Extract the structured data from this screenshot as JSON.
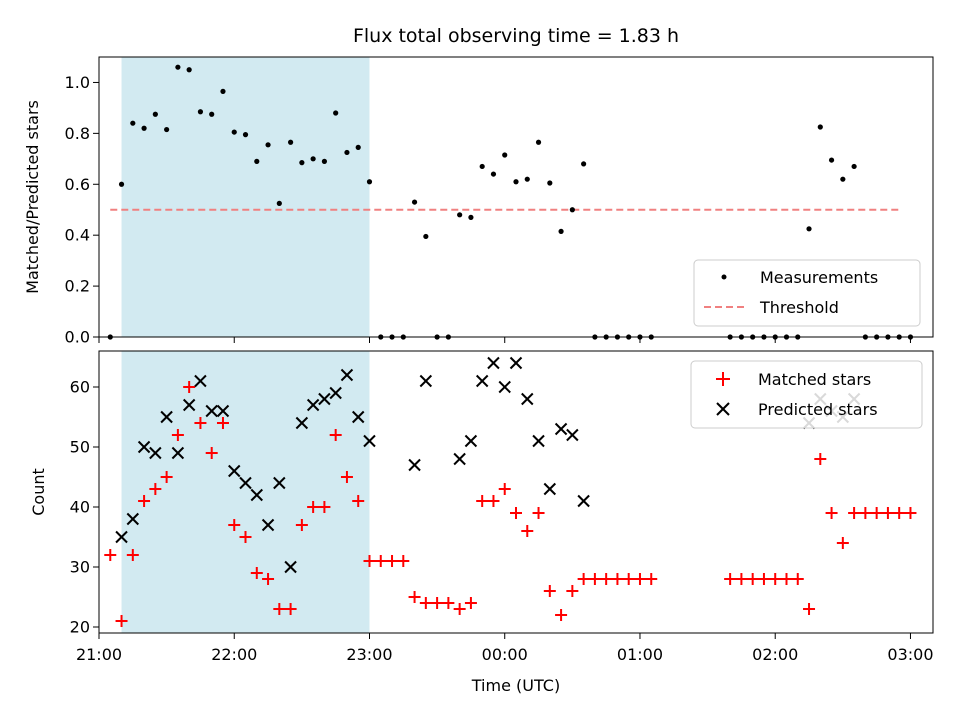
{
  "title": "Flux total observing time = 1.83 h",
  "chart_data": [
    {
      "type": "scatter",
      "ylabel": "Matched/Predicted stars",
      "xlabel": "",
      "xlim": [
        "21:00",
        "03:10"
      ],
      "ylim": [
        0,
        1.1
      ],
      "yticks": [
        "0.0",
        "0.2",
        "0.4",
        "0.6",
        "0.8",
        "1.0"
      ],
      "yticks_values": [
        0,
        0.2,
        0.4,
        0.6,
        0.8,
        1.0
      ],
      "highlight_span": {
        "start": "21:10",
        "end": "23:00",
        "color": "#add8e6"
      },
      "threshold": {
        "name": "Threshold",
        "value": 0.5,
        "start": "21:05",
        "end": "02:55",
        "color": "#f08080"
      },
      "legend": {
        "position": "lower-right",
        "entries": [
          "Measurements",
          "Threshold"
        ]
      },
      "series": [
        {
          "name": "Measurements",
          "color": "#000000",
          "points": [
            [
              "21:05",
              0.0
            ],
            [
              "21:10",
              0.6
            ],
            [
              "21:15",
              0.84
            ],
            [
              "21:20",
              0.82
            ],
            [
              "21:25",
              0.875
            ],
            [
              "21:30",
              0.815
            ],
            [
              "21:35",
              1.06
            ],
            [
              "21:40",
              1.05
            ],
            [
              "21:45",
              0.885
            ],
            [
              "21:50",
              0.875
            ],
            [
              "21:55",
              0.965
            ],
            [
              "22:00",
              0.805
            ],
            [
              "22:05",
              0.795
            ],
            [
              "22:10",
              0.69
            ],
            [
              "22:15",
              0.755
            ],
            [
              "22:20",
              0.525
            ],
            [
              "22:25",
              0.765
            ],
            [
              "22:30",
              0.685
            ],
            [
              "22:35",
              0.7
            ],
            [
              "22:40",
              0.69
            ],
            [
              "22:45",
              0.88
            ],
            [
              "22:50",
              0.725
            ],
            [
              "22:55",
              0.745
            ],
            [
              "23:00",
              0.61
            ],
            [
              "23:05",
              0.0
            ],
            [
              "23:10",
              0.0
            ],
            [
              "23:15",
              0.0
            ],
            [
              "23:20",
              0.53
            ],
            [
              "23:25",
              0.395
            ],
            [
              "23:30",
              0.0
            ],
            [
              "23:35",
              0.0
            ],
            [
              "23:40",
              0.48
            ],
            [
              "23:45",
              0.47
            ],
            [
              "23:50",
              0.67
            ],
            [
              "23:55",
              0.64
            ],
            [
              "00:00",
              0.715
            ],
            [
              "00:05",
              0.61
            ],
            [
              "00:10",
              0.62
            ],
            [
              "00:15",
              0.765
            ],
            [
              "00:20",
              0.605
            ],
            [
              "00:25",
              0.415
            ],
            [
              "00:30",
              0.5
            ],
            [
              "00:35",
              0.68
            ],
            [
              "00:40",
              0.0
            ],
            [
              "00:45",
              0.0
            ],
            [
              "00:50",
              0.0
            ],
            [
              "00:55",
              0.0
            ],
            [
              "01:00",
              0.0
            ],
            [
              "01:05",
              0.0
            ],
            [
              "01:40",
              0.0
            ],
            [
              "01:45",
              0.0
            ],
            [
              "01:50",
              0.0
            ],
            [
              "01:55",
              0.0
            ],
            [
              "02:00",
              0.0
            ],
            [
              "02:05",
              0.0
            ],
            [
              "02:10",
              0.0
            ],
            [
              "02:15",
              0.425
            ],
            [
              "02:20",
              0.825
            ],
            [
              "02:25",
              0.695
            ],
            [
              "02:30",
              0.62
            ],
            [
              "02:35",
              0.67
            ],
            [
              "02:40",
              0.0
            ],
            [
              "02:45",
              0.0
            ],
            [
              "02:50",
              0.0
            ],
            [
              "02:55",
              0.0
            ],
            [
              "03:00",
              0.0
            ]
          ]
        }
      ]
    },
    {
      "type": "scatter",
      "ylabel": "Count",
      "xlabel": "Time (UTC)",
      "xlim": [
        "21:00",
        "03:10"
      ],
      "ylim": [
        19,
        66
      ],
      "yticks": [
        "20",
        "30",
        "40",
        "50",
        "60"
      ],
      "yticks_values": [
        20,
        30,
        40,
        50,
        60
      ],
      "xticks": [
        "21:00",
        "22:00",
        "23:00",
        "00:00",
        "01:00",
        "02:00",
        "03:00"
      ],
      "highlight_span": {
        "start": "21:10",
        "end": "23:00",
        "color": "#add8e6"
      },
      "legend": {
        "position": "upper-right",
        "entries": [
          "Matched stars",
          "Predicted stars"
        ]
      },
      "series": [
        {
          "name": "Matched stars",
          "color": "#ff0000",
          "marker": "plus",
          "points": [
            [
              "21:05",
              32
            ],
            [
              "21:10",
              21
            ],
            [
              "21:15",
              32
            ],
            [
              "21:20",
              41
            ],
            [
              "21:25",
              43
            ],
            [
              "21:30",
              45
            ],
            [
              "21:35",
              52
            ],
            [
              "21:40",
              60
            ],
            [
              "21:45",
              54
            ],
            [
              "21:50",
              49
            ],
            [
              "21:55",
              54
            ],
            [
              "22:00",
              37
            ],
            [
              "22:05",
              35
            ],
            [
              "22:10",
              29
            ],
            [
              "22:15",
              28
            ],
            [
              "22:20",
              23
            ],
            [
              "22:25",
              23
            ],
            [
              "22:30",
              37
            ],
            [
              "22:35",
              40
            ],
            [
              "22:40",
              40
            ],
            [
              "22:45",
              52
            ],
            [
              "22:50",
              45
            ],
            [
              "22:55",
              41
            ],
            [
              "23:00",
              31
            ],
            [
              "23:05",
              31
            ],
            [
              "23:10",
              31
            ],
            [
              "23:15",
              31
            ],
            [
              "23:20",
              25
            ],
            [
              "23:25",
              24
            ],
            [
              "23:30",
              24
            ],
            [
              "23:35",
              24
            ],
            [
              "23:40",
              23
            ],
            [
              "23:45",
              24
            ],
            [
              "23:50",
              41
            ],
            [
              "23:55",
              41
            ],
            [
              "00:00",
              43
            ],
            [
              "00:05",
              39
            ],
            [
              "00:10",
              36
            ],
            [
              "00:15",
              39
            ],
            [
              "00:20",
              26
            ],
            [
              "00:25",
              22
            ],
            [
              "00:30",
              26
            ],
            [
              "00:35",
              28
            ],
            [
              "00:40",
              28
            ],
            [
              "00:45",
              28
            ],
            [
              "00:50",
              28
            ],
            [
              "00:55",
              28
            ],
            [
              "01:00",
              28
            ],
            [
              "01:05",
              28
            ],
            [
              "01:40",
              28
            ],
            [
              "01:45",
              28
            ],
            [
              "01:50",
              28
            ],
            [
              "01:55",
              28
            ],
            [
              "02:00",
              28
            ],
            [
              "02:05",
              28
            ],
            [
              "02:10",
              28
            ],
            [
              "02:15",
              23
            ],
            [
              "02:20",
              48
            ],
            [
              "02:25",
              39
            ],
            [
              "02:30",
              34
            ],
            [
              "02:35",
              39
            ],
            [
              "02:40",
              39
            ],
            [
              "02:45",
              39
            ],
            [
              "02:50",
              39
            ],
            [
              "02:55",
              39
            ],
            [
              "03:00",
              39
            ]
          ]
        },
        {
          "name": "Predicted stars",
          "color": "#000000",
          "marker": "x",
          "points": [
            [
              "21:10",
              35
            ],
            [
              "21:15",
              38
            ],
            [
              "21:20",
              50
            ],
            [
              "21:25",
              49
            ],
            [
              "21:30",
              55
            ],
            [
              "21:35",
              49
            ],
            [
              "21:40",
              57
            ],
            [
              "21:45",
              61
            ],
            [
              "21:50",
              56
            ],
            [
              "21:55",
              56
            ],
            [
              "22:00",
              46
            ],
            [
              "22:05",
              44
            ],
            [
              "22:10",
              42
            ],
            [
              "22:15",
              37
            ],
            [
              "22:20",
              44
            ],
            [
              "22:25",
              30
            ],
            [
              "22:30",
              54
            ],
            [
              "22:35",
              57
            ],
            [
              "22:40",
              58
            ],
            [
              "22:45",
              59
            ],
            [
              "22:50",
              62
            ],
            [
              "22:55",
              55
            ],
            [
              "23:00",
              51
            ],
            [
              "23:20",
              47
            ],
            [
              "23:25",
              61
            ],
            [
              "23:40",
              48
            ],
            [
              "23:45",
              51
            ],
            [
              "23:50",
              61
            ],
            [
              "23:55",
              64
            ],
            [
              "00:00",
              60
            ],
            [
              "00:05",
              64
            ],
            [
              "00:10",
              58
            ],
            [
              "00:15",
              51
            ],
            [
              "00:20",
              43
            ],
            [
              "00:25",
              53
            ],
            [
              "00:30",
              52
            ],
            [
              "00:35",
              41
            ],
            [
              "02:15",
              54
            ],
            [
              "02:20",
              58
            ],
            [
              "02:25",
              56
            ],
            [
              "02:30",
              55
            ],
            [
              "02:35",
              58
            ]
          ]
        }
      ]
    }
  ]
}
